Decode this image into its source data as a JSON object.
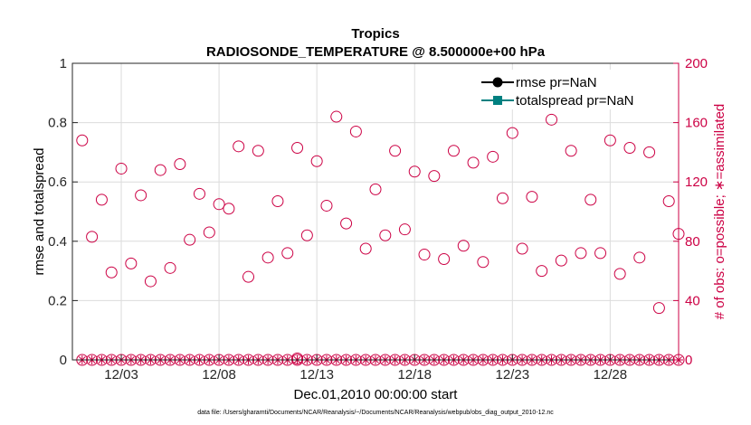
{
  "chart_data": {
    "type": "scatter",
    "title": "Tropics",
    "subtitle": "RADIOSONDE_TEMPERATURE @ 8.500000e+00 hPa",
    "xlabel": "Dec.01,2010 00:00:00 start",
    "ylabel": "rmse and totalspread",
    "ylabel_right": "# of obs: o=possible; ∗=assimilated",
    "footnote": "data file: /Users/gharamti/Documents/NCAR/Reanalysis/~/Documents/NCAR/Reanalysis/webpub/obs_diag_output_2010-12.nc",
    "xlim": [
      0.5,
      31.5
    ],
    "ylim": [
      0,
      1
    ],
    "ylim_right": [
      0,
      200
    ],
    "x_ticks": [
      3,
      8,
      13,
      18,
      23,
      28
    ],
    "x_tick_labels": [
      "12/03",
      "12/08",
      "12/13",
      "12/18",
      "12/23",
      "12/28"
    ],
    "y_ticks": [
      0,
      0.2,
      0.4,
      0.6,
      0.8,
      1
    ],
    "y_tick_labels": [
      "0",
      "0.2",
      "0.4",
      "0.6",
      "0.8",
      "1"
    ],
    "y_right_ticks": [
      0,
      40,
      80,
      120,
      160,
      200
    ],
    "y_right_tick_labels": [
      "0",
      "40",
      "80",
      "120",
      "160",
      "200"
    ],
    "grid": true,
    "legend_position": "top-right",
    "legend": [
      {
        "label": "rmse pr=NaN",
        "color": "#000000",
        "marker": "circle"
      },
      {
        "label": "totalspread pr=NaN",
        "color": "#008080",
        "marker": "square"
      }
    ],
    "colors": {
      "obs": "#cc0044",
      "rmse": "#000000",
      "totalspread": "#008080",
      "grid": "#dcdcdc"
    },
    "series": [
      {
        "name": "# of obs possible",
        "axis": "right",
        "marker": "circle-open",
        "x": [
          1,
          1.5,
          2,
          2.5,
          3,
          3.5,
          4,
          4.5,
          5,
          5.5,
          6,
          6.5,
          7,
          7.5,
          8,
          8.5,
          9,
          9.5,
          10,
          10.5,
          11,
          11.5,
          12,
          12.5,
          13,
          13.5,
          14,
          14.5,
          15,
          15.5,
          16,
          16.5,
          17,
          17.5,
          18,
          18.5,
          19,
          19.5,
          20,
          20.5,
          21,
          21.5,
          22,
          22.5,
          23,
          23.5,
          24,
          24.5,
          25,
          25.5,
          26,
          26.5,
          27,
          27.5,
          28,
          28.5,
          29,
          29.5,
          30,
          30.5,
          31,
          31.5
        ],
        "values": [
          148,
          83,
          108,
          59,
          129,
          65,
          111,
          53,
          128,
          62,
          132,
          81,
          112,
          86,
          105,
          102,
          144,
          56,
          141,
          69,
          107,
          72,
          143,
          84,
          134,
          104,
          164,
          92,
          154,
          75,
          115,
          84,
          141,
          88,
          127,
          71,
          124,
          68,
          141,
          77,
          133,
          66,
          137,
          109,
          153,
          75,
          110,
          60,
          162,
          67,
          141,
          72,
          108,
          72,
          148,
          58,
          143,
          69,
          140,
          35,
          107,
          85
        ]
      },
      {
        "name": "# of obs assimilated",
        "axis": "right",
        "marker": "asterisk",
        "x": [
          1,
          1.5,
          2,
          2.5,
          3,
          3.5,
          4,
          4.5,
          5,
          5.5,
          6,
          6.5,
          7,
          7.5,
          8,
          8.5,
          9,
          9.5,
          10,
          10.5,
          11,
          11.5,
          12,
          12.5,
          13,
          13.5,
          14,
          14.5,
          15,
          15.5,
          16,
          16.5,
          17,
          17.5,
          18,
          18.5,
          19,
          19.5,
          20,
          20.5,
          21,
          21.5,
          22,
          22.5,
          23,
          23.5,
          24,
          24.5,
          25,
          25.5,
          26,
          26.5,
          27,
          27.5,
          28,
          28.5,
          29,
          29.5,
          30,
          30.5,
          31,
          31.5
        ],
        "values": [
          0,
          0,
          0,
          0,
          0,
          0,
          0,
          0,
          0,
          0,
          0,
          0,
          0,
          0,
          0,
          0,
          0,
          0,
          0,
          0,
          0,
          0,
          0,
          0,
          0,
          0,
          0,
          0,
          0,
          0,
          0,
          0,
          0,
          0,
          0,
          0,
          0,
          0,
          0,
          0,
          0,
          0,
          0,
          0,
          0,
          0,
          0,
          0,
          0,
          0,
          0,
          0,
          0,
          0,
          0,
          0,
          0,
          0,
          0,
          0,
          0,
          0
        ]
      },
      {
        "name": "# of obs possible (zero counts)",
        "axis": "right",
        "marker": "circle-open",
        "x": [
          1,
          1.5,
          2,
          2.5,
          3,
          3.5,
          4,
          4.5,
          5,
          5.5,
          6,
          6.5,
          7,
          7.5,
          8,
          8.5,
          9,
          9.5,
          10,
          10.5,
          11,
          11.5,
          12,
          12.5,
          13,
          13.5,
          14,
          14.5,
          15,
          15.5,
          16,
          16.5,
          17,
          17.5,
          18,
          18.5,
          19,
          19.5,
          20,
          20.5,
          21,
          21.5,
          22,
          22.5,
          23,
          23.5,
          24,
          24.5,
          25,
          25.5,
          26,
          26.5,
          27,
          27.5,
          28,
          28.5,
          29,
          29.5,
          30,
          30.5,
          31,
          31.5
        ],
        "values": [
          0,
          0,
          0,
          0,
          0,
          0,
          0,
          0,
          0,
          0,
          0,
          0,
          0,
          0,
          0,
          0,
          0,
          0,
          0,
          0,
          0,
          0,
          0,
          0,
          0,
          0,
          0,
          0,
          0,
          0,
          0,
          0,
          0,
          0,
          0,
          0,
          0,
          0,
          0,
          0,
          0,
          0,
          0,
          0,
          0,
          0,
          0,
          0,
          0,
          0,
          0,
          0,
          0,
          0,
          0,
          0,
          0,
          0,
          0,
          0,
          0,
          0
        ]
      }
    ],
    "extra_points": [
      {
        "name": "obs possible outlier",
        "x": 12,
        "y_right": 1
      }
    ]
  }
}
